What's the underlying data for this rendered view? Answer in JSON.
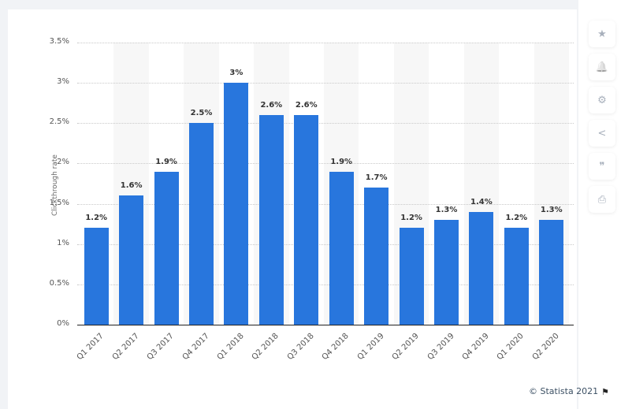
{
  "chart_data": {
    "type": "bar",
    "title": "",
    "xlabel": "",
    "ylabel": "Clickthrough rate",
    "ylim": [
      0,
      3.5
    ],
    "yticks": [
      "0%",
      "0.5%",
      "1%",
      "1.5%",
      "2%",
      "2.5%",
      "3%",
      "3.5%"
    ],
    "grid": true,
    "categories": [
      "Q1 2017",
      "Q2 2017",
      "Q3 2017",
      "Q4 2017",
      "Q1 2018",
      "Q2 2018",
      "Q3 2018",
      "Q4 2018",
      "Q1 2019",
      "Q2 2019",
      "Q3 2019",
      "Q4 2019",
      "Q1 2020",
      "Q2 2020"
    ],
    "values": [
      1.2,
      1.6,
      1.9,
      2.5,
      3.0,
      2.6,
      2.6,
      1.9,
      1.7,
      1.2,
      1.3,
      1.4,
      1.2,
      1.3
    ],
    "value_labels": [
      "1.2%",
      "1.6%",
      "1.9%",
      "2.5%",
      "3%",
      "2.6%",
      "2.6%",
      "1.9%",
      "1.7%",
      "1.2%",
      "1.3%",
      "1.4%",
      "1.2%",
      "1.3%"
    ],
    "bar_color": "#2876dd"
  },
  "footer": {
    "credit": "© Statista 2021",
    "flag_icon": "⚑"
  },
  "sidebar": {
    "buttons": [
      {
        "name": "star-icon",
        "glyph": "★"
      },
      {
        "name": "bell-icon",
        "glyph": "🔔"
      },
      {
        "name": "gear-icon",
        "glyph": "⚙"
      },
      {
        "name": "share-icon",
        "glyph": "<"
      },
      {
        "name": "quote-icon",
        "glyph": "❞"
      },
      {
        "name": "print-icon",
        "glyph": "⎙"
      }
    ]
  }
}
